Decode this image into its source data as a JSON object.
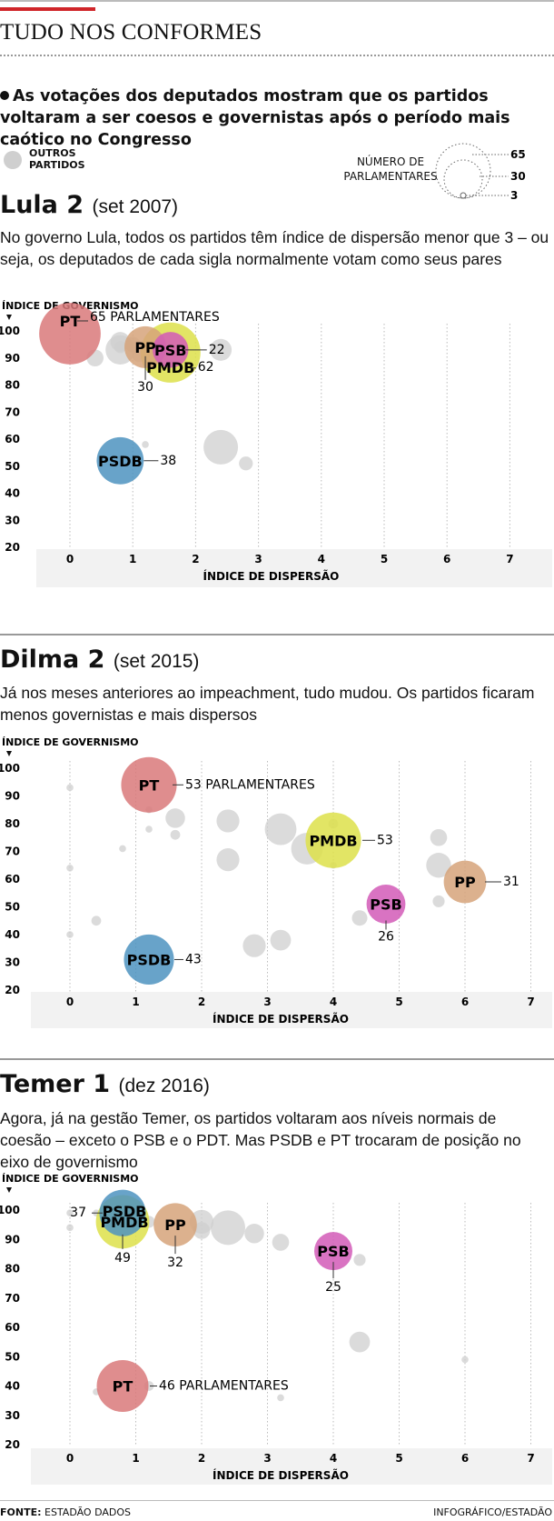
{
  "header": {
    "title": "TUDO NOS CONFORMES",
    "lede": "As votações dos deputados mostram que os partidos voltaram a ser coesos e governistas após o período mais caótico no Congresso"
  },
  "legend": {
    "others_label": "OUTROS PARTIDOS",
    "size_title": "NÚMERO DE PARLAMENTARES",
    "size_values": [
      "65",
      "30",
      "3"
    ]
  },
  "footer": {
    "source_label": "FONTE:",
    "source": "ESTADÃO DADOS",
    "credit": "INFOGRÁFICO/ESTADÃO"
  },
  "colors": {
    "PT": "#d9797a",
    "PSDB": "#4e93c0",
    "PMDB": "#dde14a",
    "PSB": "#d25bb7",
    "PP": "#d6a37a",
    "others": "#cfcfcf",
    "plot_bg": "#f2f2f2"
  },
  "chart_data": [
    {
      "type": "scatter",
      "title": "Lula 2",
      "period": "(set 2007)",
      "description": "No governo Lula, todos os partidos têm índice de dispersão menor que 3 – ou seja, os deputados de cada sigla normalmente  votam como seus pares",
      "xlabel": "ÍNDICE DE DISPERSÃO",
      "ylabel": "ÍNDICE DE GOVERNISMO",
      "xlim": [
        0,
        7
      ],
      "ylim": [
        20,
        100
      ],
      "x_ticks": [
        0,
        1,
        2,
        3,
        4,
        5,
        6,
        7
      ],
      "y_ticks": [
        20,
        30,
        40,
        50,
        60,
        70,
        80,
        90,
        100
      ],
      "highlighted": [
        {
          "name": "PT",
          "x": 0,
          "y": 99,
          "size": 65,
          "annotation": "65 PARLAMENTARES"
        },
        {
          "name": "PMDB",
          "x": 1.6,
          "y": 92,
          "size": 62,
          "annotation": "62"
        },
        {
          "name": "PP",
          "x": 1.2,
          "y": 94,
          "size": 30,
          "annotation": "30"
        },
        {
          "name": "PSB",
          "x": 1.6,
          "y": 93,
          "size": 22,
          "annotation": "22"
        },
        {
          "name": "PSDB",
          "x": 0.8,
          "y": 52,
          "size": 38,
          "annotation": "38"
        }
      ],
      "others": [
        {
          "x": 0.4,
          "y": 90,
          "size": 6
        },
        {
          "x": 0.8,
          "y": 93,
          "size": 18
        },
        {
          "x": 0.8,
          "y": 96,
          "size": 8
        },
        {
          "x": 0.8,
          "y": 94,
          "size": 3
        },
        {
          "x": 1.0,
          "y": 95,
          "size": 5
        },
        {
          "x": 1.1,
          "y": 91,
          "size": 4
        },
        {
          "x": 2.4,
          "y": 93,
          "size": 10
        },
        {
          "x": 1.2,
          "y": 58,
          "size": 1
        },
        {
          "x": 2.4,
          "y": 57,
          "size": 25
        },
        {
          "x": 2.8,
          "y": 51,
          "size": 4
        }
      ]
    },
    {
      "type": "scatter",
      "title": "Dilma 2",
      "period": "(set 2015)",
      "description": "Já nos meses anteriores ao impeachment, tudo mudou. Os partidos ficaram menos governistas e mais dispersos",
      "xlabel": "ÍNDICE DE DISPERSÃO",
      "ylabel": "ÍNDICE DE GOVERNISMO",
      "xlim": [
        0,
        7
      ],
      "ylim": [
        20,
        100
      ],
      "x_ticks": [
        0,
        1,
        2,
        3,
        4,
        5,
        6,
        7
      ],
      "y_ticks": [
        20,
        30,
        40,
        50,
        60,
        70,
        80,
        90,
        100
      ],
      "highlighted": [
        {
          "name": "PT",
          "x": 1.2,
          "y": 94,
          "size": 53,
          "annotation": "53 PARLAMENTARES"
        },
        {
          "name": "PMDB",
          "x": 4.0,
          "y": 74,
          "size": 53,
          "annotation": "53"
        },
        {
          "name": "PP",
          "x": 6.0,
          "y": 59,
          "size": 31,
          "annotation": "31"
        },
        {
          "name": "PSB",
          "x": 4.8,
          "y": 51,
          "size": 26,
          "annotation": "26"
        },
        {
          "name": "PSDB",
          "x": 1.2,
          "y": 31,
          "size": 43,
          "annotation": "43"
        }
      ],
      "others": [
        {
          "x": 0.0,
          "y": 93,
          "size": 1
        },
        {
          "x": 0.0,
          "y": 64,
          "size": 1
        },
        {
          "x": 0.0,
          "y": 40,
          "size": 1
        },
        {
          "x": 0.4,
          "y": 45,
          "size": 2
        },
        {
          "x": 0.8,
          "y": 71,
          "size": 1
        },
        {
          "x": 1.2,
          "y": 85,
          "size": 1
        },
        {
          "x": 1.2,
          "y": 78,
          "size": 1
        },
        {
          "x": 1.6,
          "y": 82,
          "size": 8
        },
        {
          "x": 1.6,
          "y": 76,
          "size": 2
        },
        {
          "x": 2.4,
          "y": 81,
          "size": 11
        },
        {
          "x": 2.4,
          "y": 67,
          "size": 11
        },
        {
          "x": 2.8,
          "y": 36,
          "size": 11
        },
        {
          "x": 3.2,
          "y": 78,
          "size": 21
        },
        {
          "x": 3.2,
          "y": 38,
          "size": 9
        },
        {
          "x": 3.6,
          "y": 71,
          "size": 21
        },
        {
          "x": 4.0,
          "y": 80,
          "size": 2
        },
        {
          "x": 4.0,
          "y": 65,
          "size": 1
        },
        {
          "x": 4.4,
          "y": 46,
          "size": 5
        },
        {
          "x": 5.6,
          "y": 75,
          "size": 6
        },
        {
          "x": 5.6,
          "y": 65,
          "size": 13
        },
        {
          "x": 5.6,
          "y": 52,
          "size": 3
        }
      ]
    },
    {
      "type": "scatter",
      "title": "Temer 1",
      "period": "(dez 2016)",
      "description": "Agora, já na gestão Temer, os partidos voltaram aos níveis normais de coesão – exceto o PSB e o PDT. Mas PSDB e PT trocaram de posição no eixo de governismo",
      "xlabel": "ÍNDICE DE DISPERSÃO",
      "ylabel": "ÍNDICE DE GOVERNISMO",
      "xlim": [
        0,
        7
      ],
      "ylim": [
        20,
        100
      ],
      "x_ticks": [
        0,
        1,
        2,
        3,
        4,
        5,
        6,
        7
      ],
      "y_ticks": [
        20,
        30,
        40,
        50,
        60,
        70,
        80,
        90,
        100
      ],
      "highlighted": [
        {
          "name": "PSDB",
          "x": 0.8,
          "y": 99,
          "size": 37,
          "annotation": "37"
        },
        {
          "name": "PMDB",
          "x": 0.8,
          "y": 96,
          "size": 49,
          "annotation": "49"
        },
        {
          "name": "PP",
          "x": 1.6,
          "y": 95,
          "size": 32,
          "annotation": "32"
        },
        {
          "name": "PSB",
          "x": 4.0,
          "y": 86,
          "size": 25,
          "annotation": "25"
        },
        {
          "name": "PT",
          "x": 0.8,
          "y": 40,
          "size": 46,
          "annotation": "46 PARLAMENTARES"
        }
      ],
      "others": [
        {
          "x": 0.0,
          "y": 99,
          "size": 1
        },
        {
          "x": 0.0,
          "y": 94,
          "size": 1
        },
        {
          "x": 0.4,
          "y": 99,
          "size": 1
        },
        {
          "x": 1.2,
          "y": 96,
          "size": 3
        },
        {
          "x": 2.0,
          "y": 96,
          "size": 12
        },
        {
          "x": 2.0,
          "y": 93,
          "size": 6
        },
        {
          "x": 2.4,
          "y": 94,
          "size": 25
        },
        {
          "x": 2.8,
          "y": 92,
          "size": 8
        },
        {
          "x": 3.2,
          "y": 89,
          "size": 6
        },
        {
          "x": 4.4,
          "y": 83,
          "size": 3
        },
        {
          "x": 4.4,
          "y": 55,
          "size": 9
        },
        {
          "x": 6.0,
          "y": 49,
          "size": 1
        },
        {
          "x": 0.4,
          "y": 38,
          "size": 1
        },
        {
          "x": 1.2,
          "y": 40,
          "size": 2
        },
        {
          "x": 3.2,
          "y": 36,
          "size": 1
        }
      ]
    }
  ]
}
